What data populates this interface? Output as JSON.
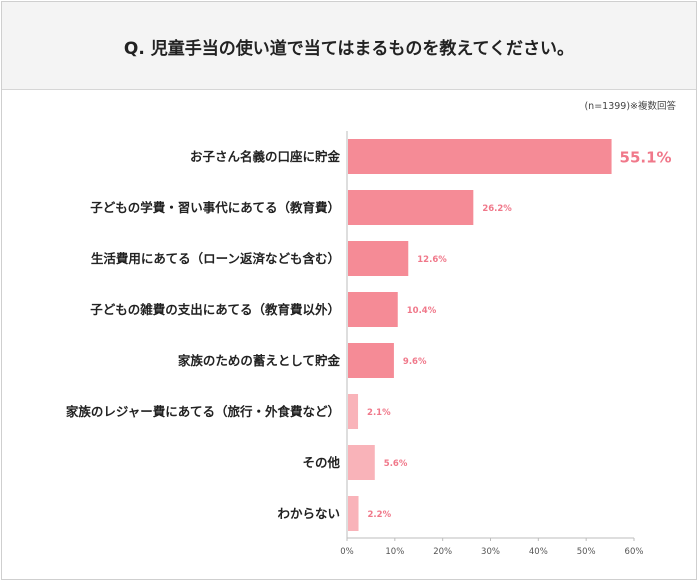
{
  "question": "Q. 児童手当の使い道で当てはまるものを教えてください。",
  "note": "(n=1399)※複数回答",
  "colors": {
    "bar_main": "#f58b96",
    "bar_light": "#f9b3b9",
    "value_text": "#f0788a",
    "axis": "#bdbdbd"
  },
  "chart_data": {
    "type": "bar",
    "orientation": "horizontal",
    "categories": [
      "お子さん名義の口座に貯金",
      "子どもの学費・習い事代にあてる（教育費）",
      "生活費用にあてる（ローン返済なども含む）",
      "子どもの雑費の支出にあてる（教育費以外）",
      "家族のための蓄えとして貯金",
      "家族のレジャー費にあてる（旅行・外食費など）",
      "その他",
      "わからない"
    ],
    "values": [
      55.1,
      26.2,
      12.6,
      10.4,
      9.6,
      2.1,
      5.6,
      2.2
    ],
    "value_labels": [
      "55.1%",
      "26.2%",
      "12.6%",
      "10.4%",
      "9.6%",
      "2.1%",
      "5.6%",
      "2.2%"
    ],
    "xlim": [
      0,
      60
    ],
    "xticks": [
      "0%",
      "10%",
      "20%",
      "30%",
      "40%",
      "50%",
      "60%"
    ],
    "grid": false,
    "legend": "none"
  }
}
